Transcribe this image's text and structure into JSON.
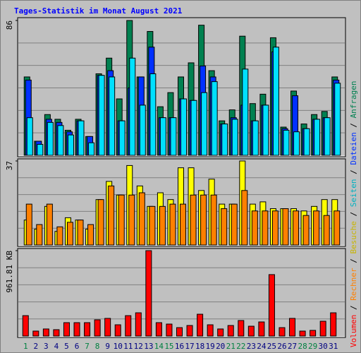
{
  "title": "Tages-Statistik im Monat August 2021",
  "legend_separator": " / ",
  "chart_data": [
    {
      "type": "bar",
      "ylim": [
        0,
        86
      ],
      "yticks": [
        86
      ],
      "series": [
        {
          "name": "Anfragen",
          "color": "#008050",
          "values": [
            50,
            9,
            26,
            23,
            16,
            23,
            12,
            52,
            62,
            36,
            86,
            50,
            79,
            31,
            40,
            50,
            59,
            83,
            54,
            22,
            29,
            76,
            33,
            39,
            75,
            18,
            41,
            20,
            26,
            28,
            50
          ]
        },
        {
          "name": "Dateien",
          "color": "#0030ff",
          "values": [
            48,
            9,
            23,
            21,
            15,
            22,
            12,
            51,
            54,
            22,
            43,
            50,
            69,
            24,
            24,
            36,
            35,
            57,
            50,
            20,
            24,
            32,
            22,
            32,
            66,
            17,
            38,
            17,
            23,
            24,
            48
          ]
        },
        {
          "name": "Seiten",
          "color": "#00e0ff",
          "values": [
            24,
            7,
            21,
            19,
            13,
            22,
            8,
            51,
            50,
            22,
            62,
            32,
            52,
            24,
            24,
            36,
            35,
            40,
            47,
            20,
            23,
            55,
            22,
            32,
            69,
            16,
            15,
            17,
            23,
            24,
            46
          ]
        }
      ]
    },
    {
      "type": "bar",
      "ylim": [
        0,
        37
      ],
      "yticks": [
        37
      ],
      "series": [
        {
          "name": "Besuche",
          "color": "#ffff00",
          "values": [
            11,
            7,
            17,
            6,
            12,
            11,
            7,
            20,
            28,
            22,
            35,
            26,
            17,
            23,
            20,
            34,
            34,
            24,
            29,
            18,
            18,
            37,
            18,
            19,
            16,
            16,
            16,
            15,
            17,
            20,
            20
          ]
        },
        {
          "name": "Rechner",
          "color": "#ff8000",
          "values": [
            18,
            9,
            18,
            8,
            10,
            11,
            9,
            20,
            26,
            22,
            22,
            23,
            17,
            17,
            18,
            18,
            22,
            22,
            22,
            16,
            18,
            24,
            15,
            15,
            15,
            16,
            15,
            13,
            15,
            13,
            15
          ]
        }
      ]
    },
    {
      "type": "bar",
      "ylim": [
        0,
        961.81
      ],
      "yticks": [
        {
          "value": 961.81,
          "label": "961.81 KB"
        }
      ],
      "categories": [
        "1",
        "2",
        "3",
        "4",
        "5",
        "6",
        "7",
        "8",
        "9",
        "10",
        "11",
        "12",
        "13",
        "14",
        "15",
        "16",
        "17",
        "18",
        "19",
        "20",
        "21",
        "22",
        "23",
        "24",
        "25",
        "26",
        "27",
        "28",
        "29",
        "30",
        "31"
      ],
      "category_colors": [
        "#008040",
        "#000080",
        "#000080",
        "#000080",
        "#000080",
        "#000080",
        "#008040",
        "#008040",
        "#000080",
        "#000080",
        "#000080",
        "#000080",
        "#000080",
        "#008040",
        "#008040",
        "#000080",
        "#000080",
        "#000080",
        "#000080",
        "#000080",
        "#008040",
        "#008040",
        "#000080",
        "#000080",
        "#000080",
        "#000080",
        "#000080",
        "#008040",
        "#008040",
        "#000080",
        "#000080"
      ],
      "series": [
        {
          "name": "Volumen",
          "color": "#ff0000",
          "values": [
            230,
            56,
            80,
            72,
            151,
            151,
            151,
            183,
            199,
            127,
            230,
            262,
            961.81,
            151,
            135,
            95,
            119,
            246,
            127,
            80,
            119,
            175,
            111,
            159,
            692,
            95,
            199,
            56,
            64,
            167,
            262
          ]
        }
      ]
    }
  ]
}
